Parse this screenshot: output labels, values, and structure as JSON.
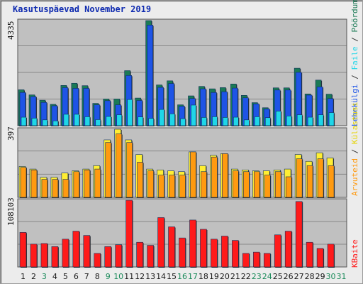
{
  "title": "Kasutuspäevad November 2019",
  "colors": {
    "pages_bar": "#1e54e6",
    "pages_cap": "#1a7a55",
    "files_bar": "#1fd6e8",
    "visits_bar": "#ff9a10",
    "visits_cap": "#ffee33",
    "kbytes_bar": "#ff1a1a",
    "weekday_label": "#1a1a1a",
    "weekend_label": "#1a8a5a",
    "panel_bg": "#c0c0c0"
  },
  "chart_data": [
    {
      "type": "bar",
      "panel": "hits",
      "ymax_label": "4335",
      "ylim": [
        0,
        4335
      ],
      "series_labels": [
        "Pöördumisi",
        "Faile",
        "Lehekülgi"
      ],
      "categories": [
        "1",
        "2",
        "3",
        "4",
        "5",
        "6",
        "7",
        "8",
        "9",
        "10",
        "11",
        "12",
        "13",
        "14",
        "15",
        "16",
        "17",
        "18",
        "19",
        "20",
        "21",
        "22",
        "23",
        "24",
        "25",
        "26",
        "27",
        "28",
        "29",
        "30",
        "31"
      ],
      "series": [
        {
          "name": "Pöördumisi",
          "values": [
            1480,
            1270,
            1050,
            880,
            1660,
            1750,
            1650,
            920,
            1100,
            1100,
            2270,
            1140,
            4335,
            1680,
            1850,
            860,
            1230,
            1620,
            1520,
            1570,
            1720,
            1250,
            950,
            740,
            1560,
            1560,
            2370,
            1310,
            1880,
            1300,
            null
          ]
        },
        {
          "name": "Faile",
          "values": [
            350,
            310,
            240,
            200,
            470,
            470,
            370,
            250,
            380,
            450,
            1080,
            360,
            300,
            670,
            490,
            290,
            850,
            340,
            370,
            340,
            350,
            240,
            370,
            330,
            600,
            400,
            450,
            350,
            450,
            540,
            null
          ]
        },
        {
          "name": "Lehekülgi",
          "values": [
            1370,
            1200,
            960,
            820,
            1570,
            1540,
            1540,
            860,
            1030,
            860,
            2070,
            1040,
            4150,
            1580,
            1740,
            800,
            1120,
            1520,
            1370,
            1400,
            1550,
            1150,
            900,
            690,
            1470,
            1470,
            2200,
            1260,
            1600,
            1120,
            null
          ]
        }
      ]
    },
    {
      "type": "bar",
      "panel": "visits",
      "ymax_label": "397",
      "ylim": [
        0,
        397
      ],
      "series_labels": [
        "Külastusi",
        "Arvuteid"
      ],
      "categories": [
        "1",
        "2",
        "3",
        "4",
        "5",
        "6",
        "7",
        "8",
        "9",
        "10",
        "11",
        "12",
        "13",
        "14",
        "15",
        "16",
        "17",
        "18",
        "19",
        "20",
        "21",
        "22",
        "23",
        "24",
        "25",
        "26",
        "27",
        "28",
        "29",
        "30",
        "31"
      ],
      "series": [
        {
          "name": "Külastusi",
          "values": [
            180,
            165,
            117,
            117,
            142,
            155,
            165,
            185,
            335,
            397,
            335,
            250,
            165,
            160,
            155,
            150,
            265,
            185,
            245,
            255,
            165,
            160,
            155,
            155,
            160,
            165,
            250,
            210,
            260,
            230,
            null
          ]
        },
        {
          "name": "Arvuteid",
          "values": [
            175,
            160,
            105,
            105,
            105,
            150,
            160,
            165,
            320,
            370,
            320,
            205,
            155,
            130,
            130,
            130,
            265,
            150,
            235,
            255,
            155,
            150,
            150,
            130,
            150,
            120,
            225,
            185,
            225,
            185,
            null
          ]
        }
      ]
    },
    {
      "type": "bar",
      "panel": "kbytes",
      "ymax_label": "108103",
      "ylim": [
        0,
        108103
      ],
      "series_labels": [
        "KBaite"
      ],
      "categories": [
        "1",
        "2",
        "3",
        "4",
        "5",
        "6",
        "7",
        "8",
        "9",
        "10",
        "11",
        "12",
        "13",
        "14",
        "15",
        "16",
        "17",
        "18",
        "19",
        "20",
        "21",
        "22",
        "23",
        "24",
        "25",
        "26",
        "27",
        "28",
        "29",
        "30",
        "31"
      ],
      "series": [
        {
          "name": "KBaite",
          "values": [
            56000,
            37000,
            38000,
            33000,
            45000,
            58000,
            51000,
            22000,
            33000,
            36000,
            108000,
            40000,
            35000,
            80000,
            65000,
            47000,
            76000,
            61000,
            45000,
            50000,
            43000,
            22000,
            24000,
            22000,
            52000,
            58000,
            106000,
            40000,
            30000,
            37000,
            null
          ]
        }
      ]
    }
  ],
  "x_labels": [
    {
      "t": "1",
      "we": false
    },
    {
      "t": "2",
      "we": false
    },
    {
      "t": "3",
      "we": true
    },
    {
      "t": "4",
      "we": false
    },
    {
      "t": "5",
      "we": false
    },
    {
      "t": "6",
      "we": false
    },
    {
      "t": "7",
      "we": false
    },
    {
      "t": "8",
      "we": false
    },
    {
      "t": "9",
      "we": true
    },
    {
      "t": "10",
      "we": true
    },
    {
      "t": "11",
      "we": false
    },
    {
      "t": "12",
      "we": false
    },
    {
      "t": "13",
      "we": false
    },
    {
      "t": "14",
      "we": false
    },
    {
      "t": "15",
      "we": false
    },
    {
      "t": "16",
      "we": true
    },
    {
      "t": "17",
      "we": true
    },
    {
      "t": "18",
      "we": false
    },
    {
      "t": "19",
      "we": false
    },
    {
      "t": "20",
      "we": false
    },
    {
      "t": "21",
      "we": false
    },
    {
      "t": "22",
      "we": false
    },
    {
      "t": "23",
      "we": true
    },
    {
      "t": "24",
      "we": true
    },
    {
      "t": "25",
      "we": false
    },
    {
      "t": "26",
      "we": false
    },
    {
      "t": "27",
      "we": false
    },
    {
      "t": "28",
      "we": false
    },
    {
      "t": "29",
      "we": false
    },
    {
      "t": "30",
      "we": true
    },
    {
      "t": "31",
      "we": true
    }
  ]
}
